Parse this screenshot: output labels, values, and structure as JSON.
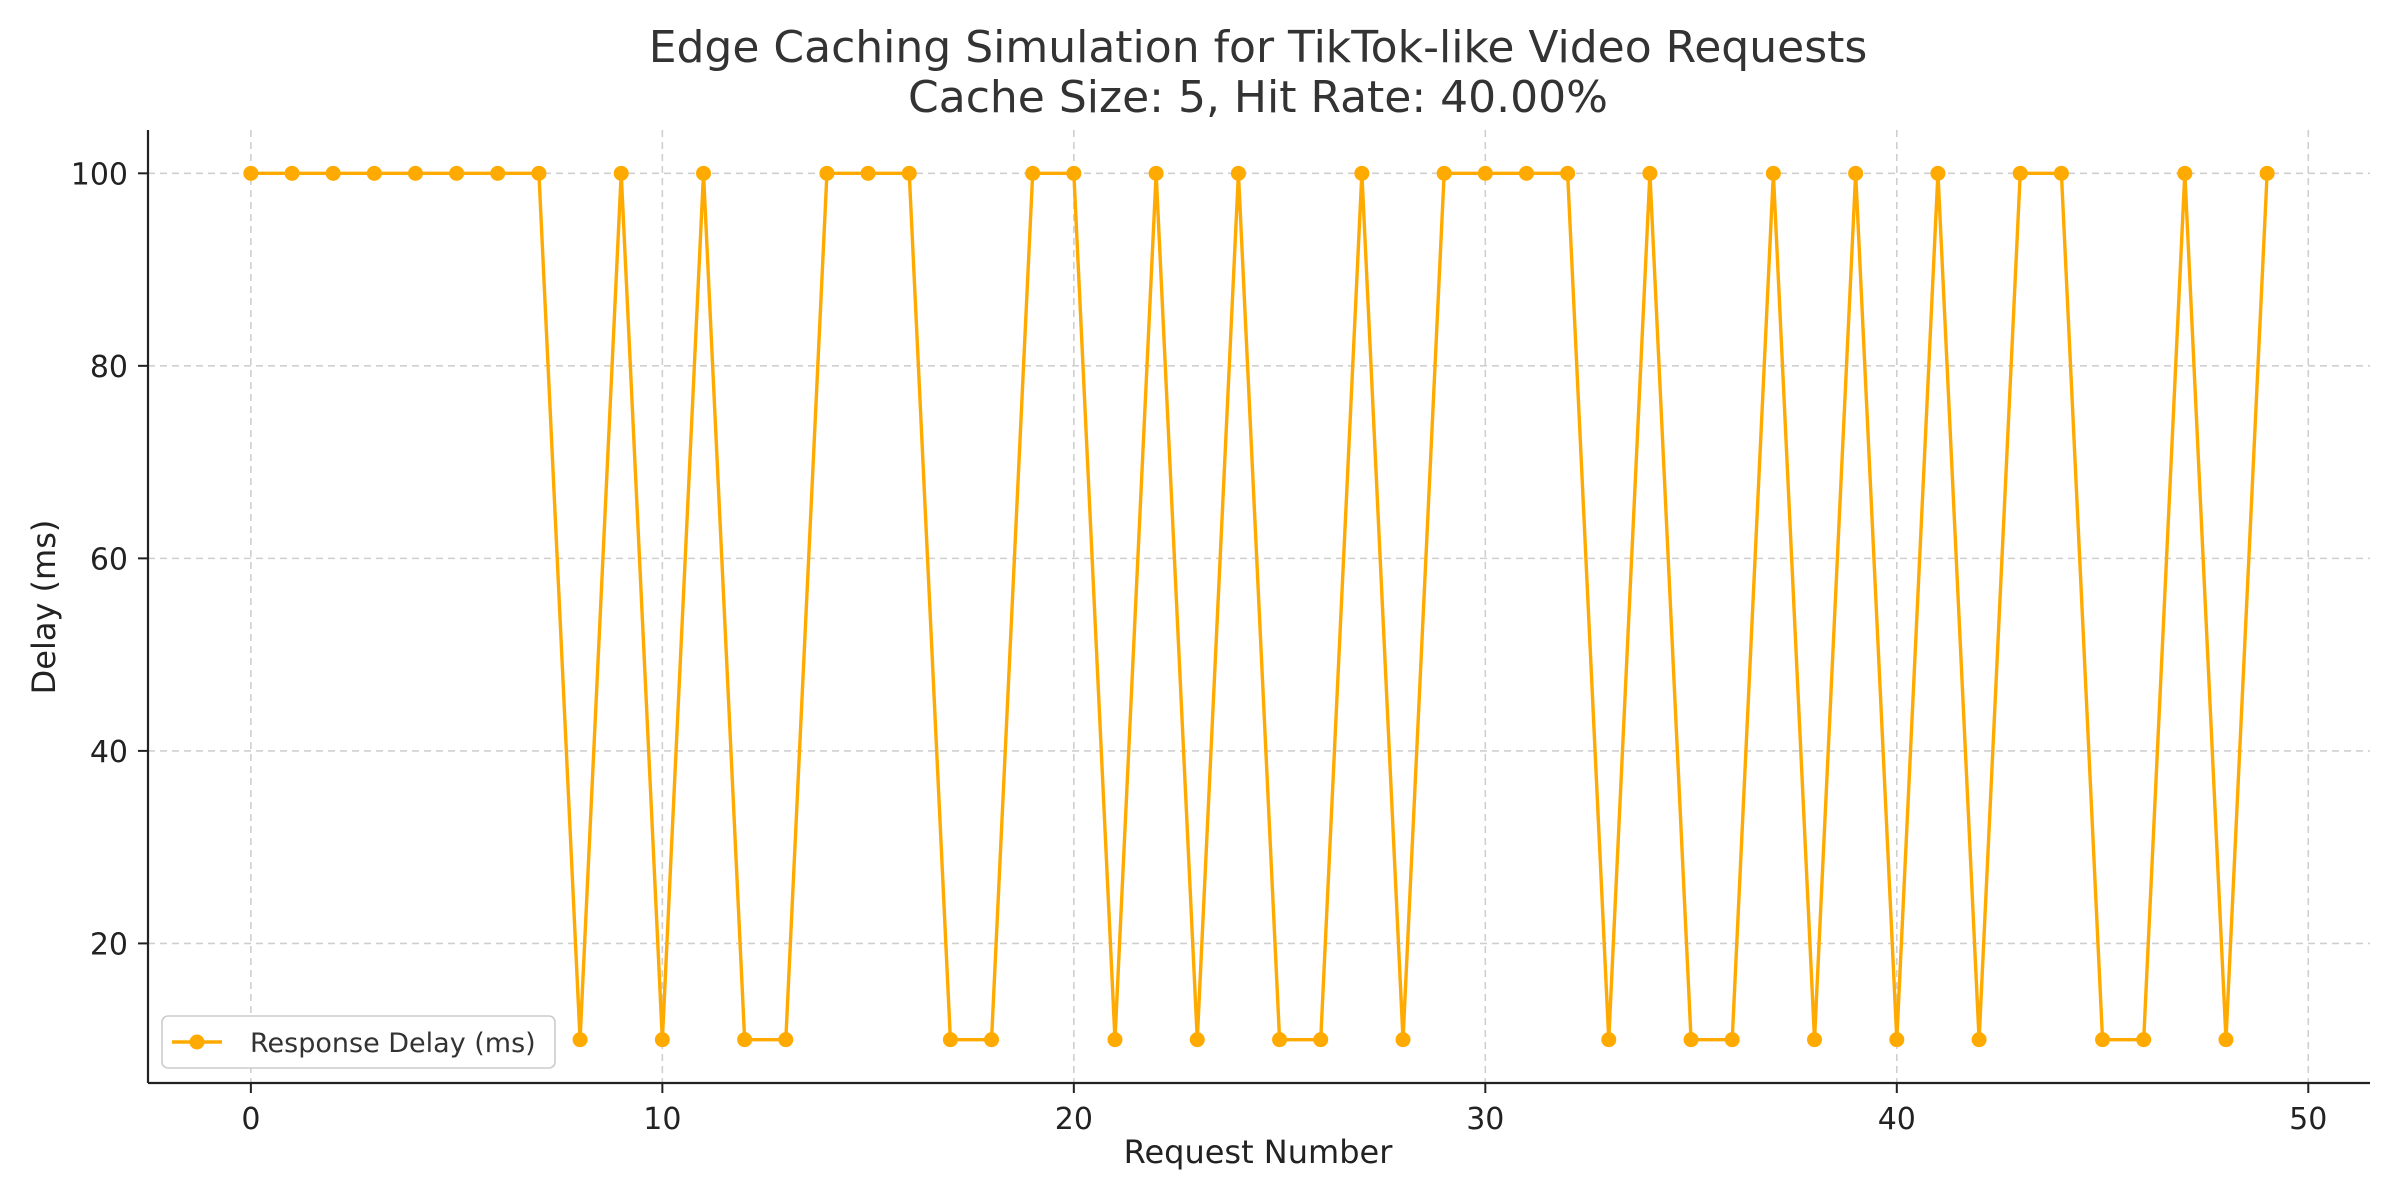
{
  "chart_data": {
    "type": "line",
    "title": "Edge Caching Simulation for TikTok-like Video Requests",
    "subtitle": "Cache Size: 5, Hit Rate: 40.00%",
    "xlabel": "Request Number",
    "ylabel": "Delay (ms)",
    "xlim": [
      -2.5,
      51.5
    ],
    "ylim": [
      5.5,
      104.5
    ],
    "xticks": [
      0,
      10,
      20,
      30,
      40,
      50
    ],
    "yticks": [
      20,
      40,
      60,
      80,
      100
    ],
    "grid": true,
    "legend_position": "lower-left",
    "series": [
      {
        "name": "Response Delay (ms)",
        "color": "#FFAA00",
        "marker": "circle",
        "x": [
          0,
          1,
          2,
          3,
          4,
          5,
          6,
          7,
          8,
          9,
          10,
          11,
          12,
          13,
          14,
          15,
          16,
          17,
          18,
          19,
          20,
          21,
          22,
          23,
          24,
          25,
          26,
          27,
          28,
          29,
          30,
          31,
          32,
          33,
          34,
          35,
          36,
          37,
          38,
          39,
          40,
          41,
          42,
          43,
          44,
          45,
          46,
          47,
          48,
          49
        ],
        "values": [
          100,
          100,
          100,
          100,
          100,
          100,
          100,
          100,
          10,
          100,
          10,
          100,
          10,
          10,
          100,
          100,
          100,
          10,
          10,
          100,
          100,
          10,
          100,
          10,
          100,
          10,
          10,
          100,
          10,
          100,
          100,
          100,
          100,
          10,
          100,
          10,
          10,
          100,
          10,
          100,
          10,
          100,
          10,
          100,
          100,
          10,
          10,
          100,
          10,
          100
        ]
      }
    ]
  }
}
